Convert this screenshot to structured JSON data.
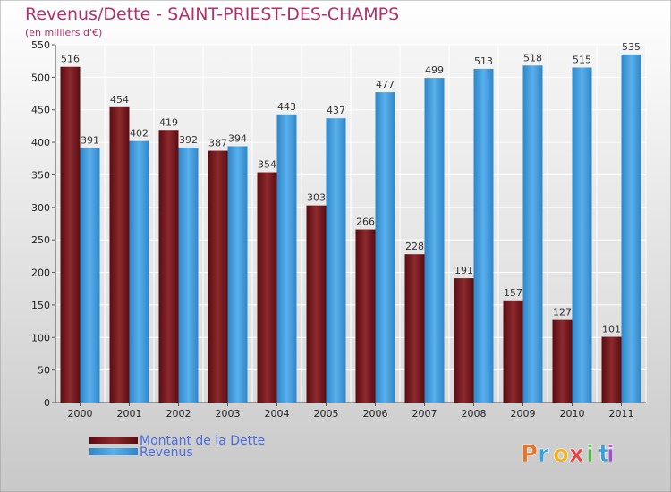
{
  "chart_data": {
    "type": "bar",
    "title": "Revenus/Dette - SAINT-PRIEST-DES-CHAMPS",
    "subtitle": "(en milliers d'€)",
    "categories": [
      "2000",
      "2001",
      "2002",
      "2003",
      "2004",
      "2005",
      "2006",
      "2007",
      "2008",
      "2009",
      "2010",
      "2011"
    ],
    "series": [
      {
        "name": "Montant de la Dette",
        "color": "#7a1a1e",
        "values": [
          516,
          454,
          419,
          387,
          354,
          303,
          266,
          228,
          191,
          157,
          127,
          101
        ]
      },
      {
        "name": "Revenus",
        "color": "#4aa3e2",
        "values": [
          391,
          402,
          392,
          394,
          443,
          437,
          477,
          499,
          513,
          518,
          515,
          535
        ]
      }
    ],
    "ylim": [
      0,
      550
    ],
    "yticks": [
      0,
      50,
      100,
      150,
      200,
      250,
      300,
      350,
      400,
      450,
      500,
      550
    ],
    "grid": true,
    "legend_position": "bottom-left"
  },
  "branding": {
    "logo_text": "Proxiti",
    "logo_colors": [
      "#e8732a",
      "#3aa0d8",
      "#f0b020",
      "#e84040",
      "#5ab04a",
      "#3aa0d8",
      "#a050c0"
    ]
  }
}
